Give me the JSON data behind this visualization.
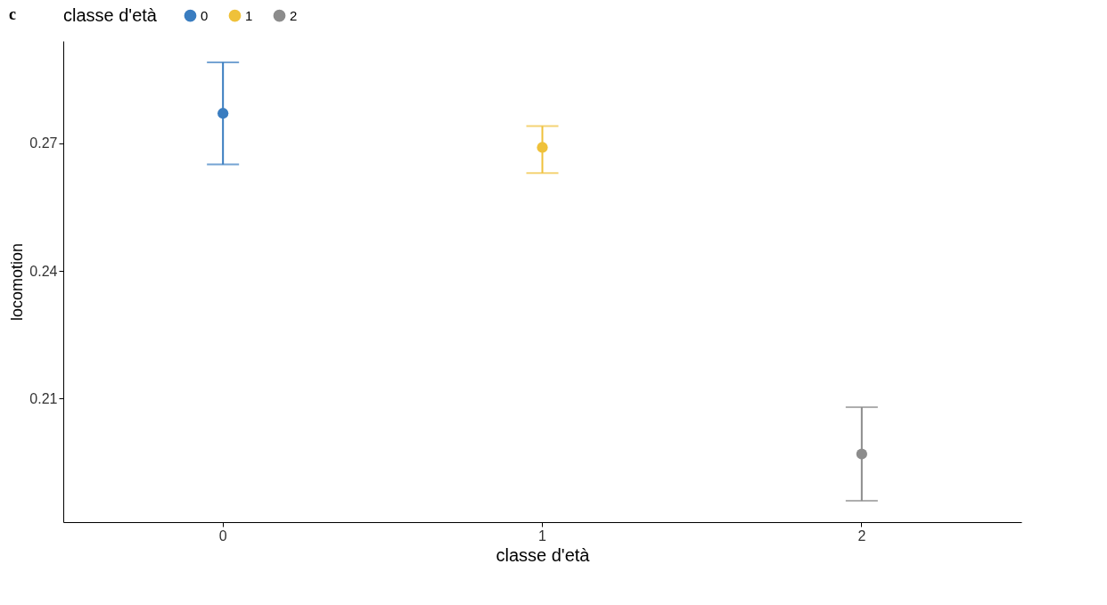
{
  "chart_data": {
    "type": "scatter",
    "annotations": [
      "c"
    ],
    "xlabel": "classe d'età",
    "ylabel": "locomotion",
    "legend_title": "classe d'età",
    "legend": "top",
    "grid": false,
    "marker": "circle",
    "categories": [
      "0",
      "1",
      "2"
    ],
    "ylim": [
      0.181,
      0.294
    ],
    "yticks": [
      0.21,
      0.24,
      0.27
    ],
    "series": [
      {
        "name": "0",
        "color": "#3a7dc0",
        "values": [
          0.277,
          null,
          null
        ],
        "errors": [
          [
            0.265,
            0.289
          ],
          null,
          null
        ]
      },
      {
        "name": "1",
        "color": "#efc13a",
        "values": [
          null,
          0.269,
          null
        ],
        "errors": [
          null,
          [
            0.263,
            0.274
          ],
          null
        ]
      },
      {
        "name": "2",
        "color": "#8c8c8c",
        "values": [
          null,
          null,
          0.197
        ],
        "errors": [
          null,
          null,
          [
            0.186,
            0.208
          ]
        ]
      }
    ]
  }
}
